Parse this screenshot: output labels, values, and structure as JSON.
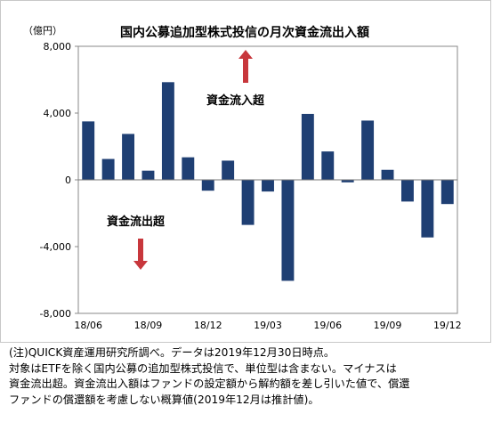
{
  "chart_data": {
    "type": "bar",
    "title": "国内公募追加型株式投信の月次資金流出入額",
    "unit_label": "（億円）",
    "categories": [
      "18/06",
      "18/07",
      "18/08",
      "18/09",
      "18/10",
      "18/11",
      "18/12",
      "19/01",
      "19/02",
      "19/03",
      "19/04",
      "19/05",
      "19/06",
      "19/07",
      "19/08",
      "19/09",
      "19/10",
      "19/11",
      "19/12"
    ],
    "x_tick_labels": [
      "18/06",
      "18/09",
      "18/12",
      "19/03",
      "19/06",
      "19/09",
      "19/12"
    ],
    "values": [
      3500,
      1250,
      2750,
      550,
      5850,
      1350,
      -650,
      1150,
      -2700,
      -700,
      -6050,
      3950,
      1700,
      -150,
      3550,
      600,
      -1300,
      -3450,
      -1450
    ],
    "ylim": [
      -8000,
      8000
    ],
    "y_ticks": [
      8000,
      4000,
      0,
      -4000,
      -8000
    ],
    "y_tick_labels": [
      "8,000",
      "4,000",
      "0",
      "-4,000",
      "-8,000"
    ],
    "grid": false,
    "legend": "none",
    "bar_color": "#1f3f73",
    "annotations": {
      "inflow_label": "資金流入超",
      "outflow_label": "資金流出超",
      "arrow_color": "#c8373c"
    }
  },
  "footnote": {
    "line1": "(注)QUICK資産運用研究所調べ。データは2019年12月30日時点。",
    "line2": "対象はETFを除く国内公募の追加型株式投信で、単位型は含まない。マイナスは",
    "line3": "資金流出超。資金流出入額はファンドの設定額から解約額を差し引いた値で、償還",
    "line4": "ファンドの償還額を考慮しない概算値(2019年12月は推計値)。"
  }
}
